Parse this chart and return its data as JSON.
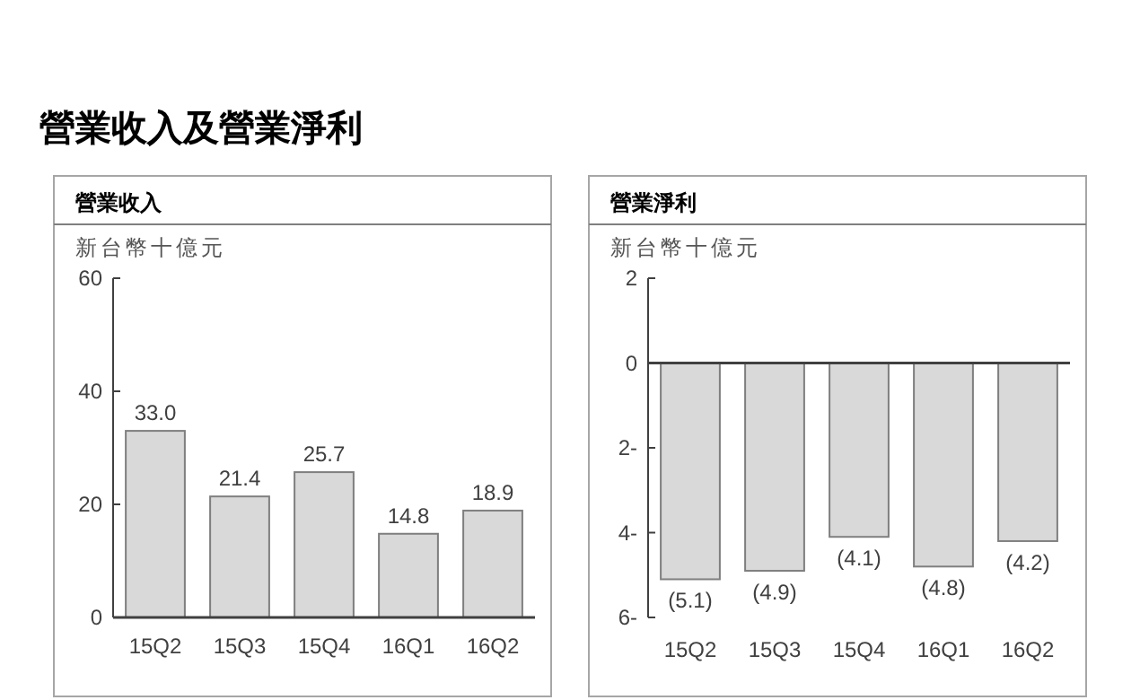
{
  "chart_data": [
    {
      "type": "bar",
      "title": "營業收入",
      "ylabel": "新台幣十億元",
      "annotations": [
        "營業收入及營業淨利"
      ],
      "categories": [
        "15Q2",
        "15Q3",
        "15Q4",
        "16Q1",
        "16Q2"
      ],
      "values": [
        33.0,
        21.4,
        25.7,
        14.8,
        18.9
      ],
      "value_labels": [
        "33.0",
        "21.4",
        "25.7",
        "14.8",
        "18.9"
      ],
      "color": "#d9d9d9",
      "ylim": [
        0,
        60
      ],
      "yticks": [
        0,
        20,
        40,
        60
      ]
    },
    {
      "type": "bar",
      "title": "營業淨利",
      "ylabel": "新台幣十億元",
      "categories": [
        "15Q2",
        "15Q3",
        "15Q4",
        "16Q1",
        "16Q2"
      ],
      "values": [
        -5.1,
        -4.9,
        -4.1,
        -4.8,
        -4.2
      ],
      "value_labels": [
        "(5.1)",
        "(4.9)",
        "(4.1)",
        "(4.8)",
        "(4.2)"
      ],
      "color": "#d9d9d9",
      "ylim": [
        -6,
        2
      ],
      "yticks": [
        2,
        0,
        {
          "value": -2,
          "label": "2-"
        },
        {
          "value": -4,
          "label": "4-"
        },
        {
          "value": -6,
          "label": "6-"
        }
      ]
    }
  ]
}
